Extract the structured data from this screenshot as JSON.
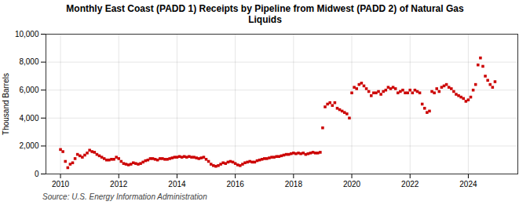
{
  "chart_data": {
    "type": "scatter",
    "title": "Monthly East Coast (PADD 1) Receipts by Pipeline from Midwest (PADD 2) of Natural Gas\nLiquids",
    "ylabel": "Thousand Barrels",
    "annotations": [
      "Source: U.S. Energy Information Administration"
    ],
    "color": "#cc0000",
    "marker": "square",
    "grid": true,
    "xlim": [
      2009.5,
      2025.7
    ],
    "xticks": [
      2010,
      2012,
      2014,
      2016,
      2018,
      2020,
      2022,
      2024
    ],
    "ylim": [
      0,
      10000
    ],
    "yticks": [
      0,
      {
        "value": 2000,
        "label": "2,000"
      },
      {
        "value": 4000,
        "label": "4,000"
      },
      {
        "value": 6000,
        "label": "6,000"
      },
      {
        "value": 8000,
        "label": "8,000"
      },
      {
        "value": 10000,
        "label": "10,000"
      }
    ],
    "x": [
      2010.0,
      2010.083,
      2010.167,
      2010.25,
      2010.333,
      2010.417,
      2010.5,
      2010.583,
      2010.667,
      2010.75,
      2010.833,
      2010.917,
      2011.0,
      2011.083,
      2011.167,
      2011.25,
      2011.333,
      2011.417,
      2011.5,
      2011.583,
      2011.667,
      2011.75,
      2011.833,
      2011.917,
      2012.0,
      2012.083,
      2012.167,
      2012.25,
      2012.333,
      2012.417,
      2012.5,
      2012.583,
      2012.667,
      2012.75,
      2012.833,
      2012.917,
      2013.0,
      2013.083,
      2013.167,
      2013.25,
      2013.333,
      2013.417,
      2013.5,
      2013.583,
      2013.667,
      2013.75,
      2013.833,
      2013.917,
      2014.0,
      2014.083,
      2014.167,
      2014.25,
      2014.333,
      2014.417,
      2014.5,
      2014.583,
      2014.667,
      2014.75,
      2014.833,
      2014.917,
      2015.0,
      2015.083,
      2015.167,
      2015.25,
      2015.333,
      2015.417,
      2015.5,
      2015.583,
      2015.667,
      2015.75,
      2015.833,
      2015.917,
      2016.0,
      2016.083,
      2016.167,
      2016.25,
      2016.333,
      2016.417,
      2016.5,
      2016.583,
      2016.667,
      2016.75,
      2016.833,
      2016.917,
      2017.0,
      2017.083,
      2017.167,
      2017.25,
      2017.333,
      2017.417,
      2017.5,
      2017.583,
      2017.667,
      2017.75,
      2017.833,
      2017.917,
      2018.0,
      2018.083,
      2018.167,
      2018.25,
      2018.333,
      2018.417,
      2018.5,
      2018.583,
      2018.667,
      2018.75,
      2018.833,
      2018.917,
      2019.0,
      2019.083,
      2019.167,
      2019.25,
      2019.333,
      2019.417,
      2019.5,
      2019.583,
      2019.667,
      2019.75,
      2019.833,
      2019.917,
      2020.0,
      2020.083,
      2020.167,
      2020.25,
      2020.333,
      2020.417,
      2020.5,
      2020.583,
      2020.667,
      2020.75,
      2020.833,
      2020.917,
      2021.0,
      2021.083,
      2021.167,
      2021.25,
      2021.333,
      2021.417,
      2021.5,
      2021.583,
      2021.667,
      2021.75,
      2021.833,
      2021.917,
      2022.0,
      2022.083,
      2022.167,
      2022.25,
      2022.333,
      2022.417,
      2022.5,
      2022.583,
      2022.667,
      2022.75,
      2022.833,
      2022.917,
      2023.0,
      2023.083,
      2023.167,
      2023.25,
      2023.333,
      2023.417,
      2023.5,
      2023.583,
      2023.667,
      2023.75,
      2023.833,
      2023.917,
      2024.0,
      2024.083,
      2024.167,
      2024.25,
      2024.333,
      2024.417,
      2024.5,
      2024.583,
      2024.667,
      2024.75,
      2024.833,
      2024.917
    ],
    "values": [
      1750,
      1600,
      900,
      450,
      700,
      800,
      1100,
      1400,
      1300,
      1200,
      1350,
      1500,
      1700,
      1600,
      1550,
      1400,
      1300,
      1200,
      1100,
      1000,
      1000,
      1050,
      1050,
      1200,
      1100,
      900,
      750,
      700,
      650,
      700,
      800,
      750,
      700,
      750,
      850,
      950,
      1000,
      1100,
      1100,
      1050,
      1000,
      1100,
      1100,
      1050,
      1050,
      1100,
      1150,
      1200,
      1200,
      1250,
      1200,
      1250,
      1200,
      1250,
      1200,
      1200,
      1150,
      1100,
      1150,
      1200,
      1050,
      900,
      700,
      600,
      550,
      600,
      700,
      800,
      750,
      850,
      900,
      850,
      750,
      650,
      600,
      700,
      800,
      850,
      900,
      850,
      850,
      950,
      1000,
      1050,
      1100,
      1100,
      1150,
      1200,
      1200,
      1250,
      1250,
      1300,
      1350,
      1400,
      1400,
      1450,
      1500,
      1450,
      1500,
      1450,
      1500,
      1400,
      1450,
      1500,
      1550,
      1500,
      1500,
      1550,
      3300,
      4800,
      5000,
      5100,
      4900,
      5100,
      4700,
      4600,
      4500,
      4400,
      4300,
      4000,
      5800,
      6200,
      6100,
      6400,
      6500,
      6300,
      6100,
      5900,
      5600,
      5800,
      5800,
      5900,
      5700,
      5900,
      6000,
      6200,
      6100,
      6200,
      6100,
      5800,
      5900,
      6000,
      5800,
      5800,
      6000,
      5800,
      6000,
      5900,
      5800,
      5000,
      4700,
      4400,
      4500,
      5900,
      5800,
      6100,
      5900,
      6200,
      6300,
      6400,
      6200,
      6100,
      5900,
      5700,
      5600,
      5500,
      5400,
      5200,
      5300,
      5500,
      6000,
      6400,
      7800,
      8300,
      7700,
      7000,
      6700,
      6400,
      6200,
      6600
    ]
  }
}
